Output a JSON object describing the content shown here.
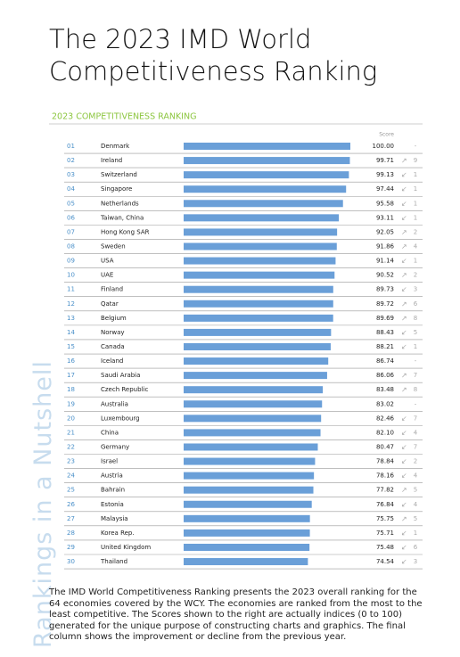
{
  "header": {
    "title": "The 2023 IMD World Competitiveness Ranking",
    "side_title": "Rankings in a Nutshell"
  },
  "chart_data": {
    "type": "bar",
    "title": "2023 COMPETITIVENESS RANKING",
    "score_header": "Score",
    "color": "#6a9fd8",
    "xlim": [
      0,
      100
    ],
    "ranks": [
      "01",
      "02",
      "03",
      "04",
      "05",
      "06",
      "07",
      "08",
      "09",
      "10",
      "11",
      "12",
      "13",
      "14",
      "15",
      "16",
      "17",
      "18",
      "19",
      "20",
      "21",
      "22",
      "23",
      "24",
      "25",
      "26",
      "27",
      "28",
      "29",
      "30"
    ],
    "categories": [
      "Denmark",
      "Ireland",
      "Switzerland",
      "Singapore",
      "Netherlands",
      "Taiwan, China",
      "Hong Kong SAR",
      "Sweden",
      "USA",
      "UAE",
      "Finland",
      "Qatar",
      "Belgium",
      "Norway",
      "Canada",
      "Iceland",
      "Saudi Arabia",
      "Czech Republic",
      "Australia",
      "Luxembourg",
      "China",
      "Germany",
      "Israel",
      "Austria",
      "Bahrain",
      "Estonia",
      "Malaysia",
      "Korea Rep.",
      "United Kingdom",
      "Thailand"
    ],
    "values": [
      100,
      99.71,
      99.13,
      97.44,
      95.58,
      93.11,
      92.05,
      91.86,
      91.14,
      90.52,
      89.73,
      89.72,
      89.69,
      88.43,
      88.21,
      86.74,
      86.06,
      83.48,
      83.02,
      82.46,
      82.1,
      80.47,
      78.84,
      78.16,
      77.82,
      76.84,
      75.75,
      75.71,
      75.48,
      74.54
    ],
    "value_labels": [
      "100.00",
      "99.71",
      "99.13",
      "97.44",
      "95.58",
      "93.11",
      "92.05",
      "91.86",
      "91.14",
      "90.52",
      "89.73",
      "89.72",
      "89.69",
      "88.43",
      "88.21",
      "86.74",
      "86.06",
      "83.48",
      "83.02",
      "82.46",
      "82.10",
      "80.47",
      "78.84",
      "78.16",
      "77.82",
      "76.84",
      "75.75",
      "75.71",
      "75.48",
      "74.54"
    ],
    "arrows": [
      null,
      "↗",
      "↙",
      "↙",
      "↙",
      "↙",
      "↗",
      "↗",
      "↙",
      "↗",
      "↙",
      "↗",
      "↗",
      "↙",
      "↙",
      null,
      "↗",
      "↗",
      null,
      "↙",
      "↙",
      "↙",
      "↙",
      "↙",
      "↗",
      "↙",
      "↗",
      "↙",
      "↙",
      "↙"
    ],
    "changes": [
      "-",
      "9",
      "1",
      "1",
      "1",
      "1",
      "2",
      "4",
      "1",
      "2",
      "3",
      "6",
      "8",
      "5",
      "1",
      "-",
      "7",
      "8",
      "-",
      "7",
      "4",
      "7",
      "2",
      "4",
      "5",
      "4",
      "5",
      "1",
      "6",
      "3"
    ]
  },
  "description": "The IMD World Competitiveness Ranking presents the 2023 overall ranking for the 64 economies covered by the WCY. The economies are ranked from the most to the least competitive. The Scores shown to the right are actually indices (0 to 100) generated for the unique purpose of constructing charts and graphics. The final column shows the improvement or decline from the previous year."
}
